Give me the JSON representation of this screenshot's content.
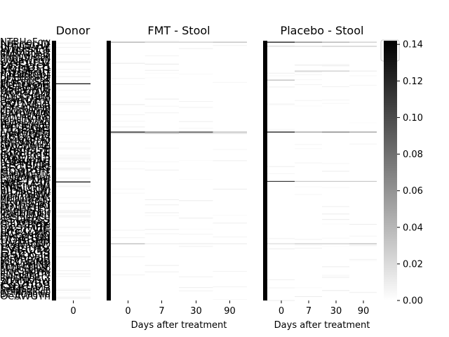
{
  "chart_data": {
    "type": "heatmap",
    "color_scale": {
      "min": 0.0,
      "max": 0.142,
      "low_color": "#ffffff",
      "high_color": "#000000"
    },
    "colorbar_ticks": [
      "0.00",
      "0.02",
      "0.04",
      "0.06",
      "0.08",
      "0.10",
      "0.12",
      "0.14"
    ],
    "panels": [
      {
        "title": "Donor",
        "xlabel": "",
        "columns": [
          "0"
        ],
        "highlight_rows": [
          {
            "row_fraction": 0.164,
            "values": [
              0.142
            ]
          },
          {
            "row_fraction": 0.542,
            "values": [
              0.142
            ]
          }
        ]
      },
      {
        "title": "FMT - Stool",
        "xlabel": "Days after treatment",
        "columns": [
          "0",
          "7",
          "30",
          "90"
        ],
        "highlight_rows": [
          {
            "row_fraction": 0.004,
            "values": [
              0.05,
              0.03,
              0.03,
              0.04
            ]
          },
          {
            "row_fraction": 0.35,
            "values": [
              0.142,
              0.09,
              0.12,
              0.04
            ]
          },
          {
            "row_fraction": 0.355,
            "values": [
              0.03,
              0.04,
              0.03,
              0.02
            ]
          },
          {
            "row_fraction": 0.78,
            "values": [
              0.04,
              0.01,
              0.01,
              0.01
            ]
          }
        ]
      },
      {
        "title": "Placebo - Stool",
        "xlabel": "Days after treatment",
        "columns": [
          "0",
          "7",
          "30",
          "90"
        ],
        "highlight_rows": [
          {
            "row_fraction": 0.004,
            "values": [
              0.142,
              0.08,
              0.05,
              0.03
            ]
          },
          {
            "row_fraction": 0.02,
            "values": [
              0.02,
              0.02,
              0.03,
              0.03
            ]
          },
          {
            "row_fraction": 0.115,
            "values": [
              0.0,
              0.03,
              0.03,
              0.01
            ]
          },
          {
            "row_fraction": 0.15,
            "values": [
              0.04,
              0.0,
              0.0,
              0.0
            ]
          },
          {
            "row_fraction": 0.35,
            "values": [
              0.142,
              0.06,
              0.08,
              0.06
            ]
          },
          {
            "row_fraction": 0.54,
            "values": [
              0.11,
              0.03,
              0.03,
              0.03
            ]
          },
          {
            "row_fraction": 0.78,
            "values": [
              0.02,
              0.03,
              0.03,
              0.04
            ]
          },
          {
            "row_fraction": 0.96,
            "values": [
              0.0,
              0.0,
              0.01,
              0.0
            ]
          }
        ]
      }
    ]
  }
}
